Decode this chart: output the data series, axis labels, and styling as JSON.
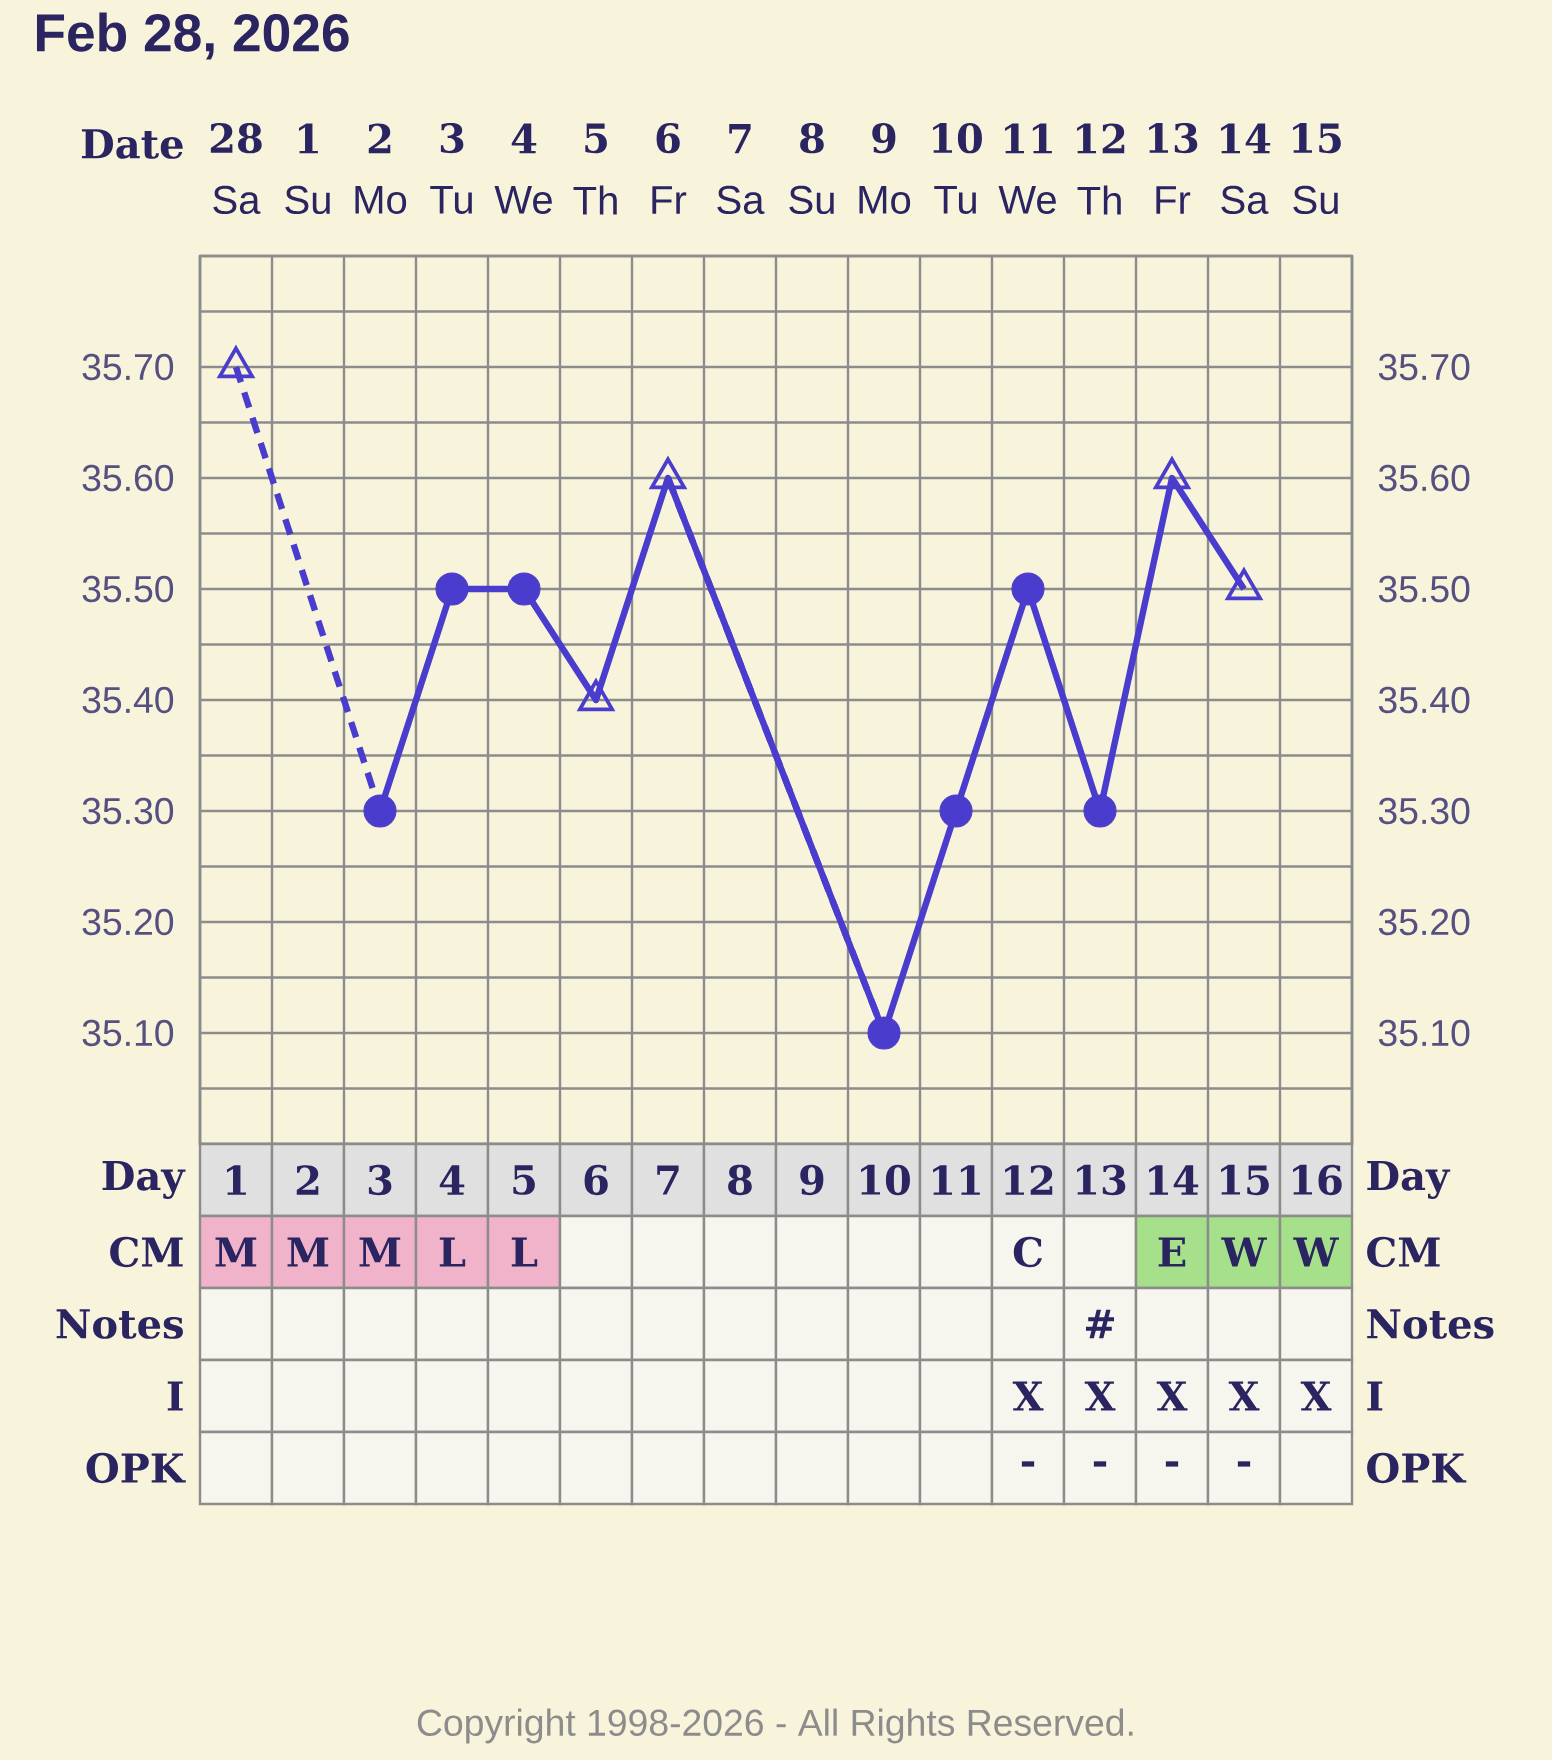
{
  "chart_data": [
    {
      "type": "line",
      "title": "Feb 28, 2026",
      "xlabel": "Date",
      "categories": [
        "28",
        "1",
        "2",
        "3",
        "4",
        "5",
        "6",
        "7",
        "8",
        "9",
        "10",
        "11",
        "12",
        "13",
        "14",
        "15"
      ],
      "ylim": [
        35.0,
        35.8
      ],
      "y2lim": [
        35.0,
        35.8
      ],
      "yticks": [
        {
          "value": 35.0,
          "label": null
        },
        {
          "value": 35.05,
          "label": null
        },
        {
          "value": 35.1,
          "label": "35.10"
        },
        {
          "value": 35.15,
          "label": null
        },
        {
          "value": 35.2,
          "label": "35.20"
        },
        {
          "value": 35.25,
          "label": null
        },
        {
          "value": 35.3,
          "label": "35.30"
        },
        {
          "value": 35.35,
          "label": null
        },
        {
          "value": 35.4,
          "label": "35.40"
        },
        {
          "value": 35.45,
          "label": null
        },
        {
          "value": 35.5,
          "label": "35.50"
        },
        {
          "value": 35.55,
          "label": null
        },
        {
          "value": 35.6,
          "label": "35.60"
        },
        {
          "value": 35.65,
          "label": null
        },
        {
          "value": 35.7,
          "label": "35.70"
        },
        {
          "value": 35.75,
          "label": null
        },
        {
          "value": 35.8,
          "label": null
        }
      ],
      "y2ticks": [
        {
          "value": 35.1,
          "label": "35.10"
        },
        {
          "value": 35.2,
          "label": "35.20"
        },
        {
          "value": 35.3,
          "label": "35.30"
        },
        {
          "value": 35.4,
          "label": "35.40"
        },
        {
          "value": 35.5,
          "label": "35.50"
        },
        {
          "value": 35.6,
          "label": "35.60"
        },
        {
          "value": 35.7,
          "label": "35.70"
        }
      ],
      "grid": true,
      "series": [
        {
          "type": "line",
          "line_style": "solid",
          "marker": "none",
          "color": "#4a3ccc",
          "values": [
            null,
            null,
            35.3,
            35.5,
            35.5,
            35.4,
            35.6,
            null,
            null,
            35.1,
            35.3,
            35.5,
            35.3,
            35.6,
            35.5,
            null
          ]
        },
        {
          "type": "line",
          "line_style": "dashed",
          "marker": "none",
          "color": "#4a3ccc",
          "values": [
            35.7,
            null,
            35.3,
            null,
            null,
            null,
            null,
            null,
            null,
            null,
            null,
            null,
            null,
            null,
            null,
            null
          ]
        },
        {
          "type": "line",
          "line_style": "dashed",
          "marker": "none",
          "color": "#4a3ccc",
          "values": [
            null,
            null,
            null,
            null,
            null,
            null,
            35.6,
            null,
            null,
            35.1,
            null,
            null,
            null,
            null,
            null,
            null
          ]
        },
        {
          "type": "scatter",
          "marker": "circle",
          "color": "#4a3ccc",
          "values": [
            null,
            null,
            35.3,
            35.5,
            35.5,
            null,
            null,
            null,
            null,
            35.1,
            35.3,
            35.5,
            35.3,
            null,
            null,
            null
          ]
        },
        {
          "type": "scatter",
          "marker": "triangle",
          "color": "#4a3ccc",
          "values": [
            35.7,
            null,
            null,
            null,
            null,
            35.4,
            35.6,
            null,
            null,
            null,
            null,
            null,
            null,
            35.6,
            35.5,
            null
          ]
        }
      ],
      "annotations": [
        "Copyright 1998-2026 - All Rights Reserved."
      ]
    },
    {
      "type": "heatmap",
      "xlabel": "Day",
      "categories": [
        "1",
        "2",
        "3",
        "4",
        "5",
        "6",
        "7",
        "8",
        "9",
        "10",
        "11",
        "12",
        "13",
        "14",
        "15",
        "16"
      ],
      "y_categories": [
        "CM",
        "Notes",
        "I",
        "OPK"
      ],
      "y2_categories": [
        "CM",
        "Notes",
        "I",
        "OPK"
      ],
      "cells": [
        [
          null,
          null,
          null,
          null,
          null,
          null,
          null,
          null,
          null,
          null,
          null,
          null,
          null,
          null,
          null,
          null
        ],
        [
          null,
          null,
          null,
          null,
          null,
          null,
          null,
          null,
          null,
          null,
          null,
          null,
          null,
          null,
          null,
          null
        ],
        [
          null,
          null,
          null,
          null,
          null,
          null,
          null,
          null,
          null,
          null,
          null,
          null,
          null,
          null,
          null,
          null
        ],
        [
          null,
          null,
          null,
          null,
          null,
          null,
          null,
          null,
          null,
          null,
          null,
          null,
          null,
          null,
          null,
          null
        ]
      ],
      "cell_labels": [
        [
          "M",
          "M",
          "M",
          "L",
          "L",
          null,
          null,
          null,
          null,
          null,
          null,
          "C",
          null,
          "E",
          "W",
          "W"
        ],
        [
          null,
          null,
          null,
          null,
          null,
          null,
          null,
          null,
          null,
          null,
          null,
          null,
          "#",
          null,
          null,
          null
        ],
        [
          null,
          null,
          null,
          null,
          null,
          null,
          null,
          null,
          null,
          null,
          null,
          "X",
          "X",
          "X",
          "X",
          "X"
        ],
        [
          null,
          null,
          null,
          null,
          null,
          null,
          null,
          null,
          null,
          null,
          null,
          "-",
          "-",
          "-",
          "-",
          null
        ]
      ],
      "colors": [
        [
          "#f0b3c9",
          "#f0b3c9",
          "#f0b3c9",
          "#f0b3c9",
          "#f0b3c9",
          null,
          null,
          null,
          null,
          null,
          null,
          null,
          null,
          "#a6e08a",
          "#a6e08a",
          "#a6e08a"
        ],
        [
          null,
          null,
          null,
          null,
          null,
          null,
          null,
          null,
          null,
          null,
          null,
          null,
          null,
          null,
          null,
          null
        ],
        [
          null,
          null,
          null,
          null,
          null,
          null,
          null,
          null,
          null,
          null,
          null,
          null,
          null,
          null,
          null,
          null
        ],
        [
          null,
          null,
          null,
          null,
          null,
          null,
          null,
          null,
          null,
          null,
          null,
          null,
          null,
          null,
          null,
          null
        ]
      ]
    },
    {
      "type": "other",
      "annotations": [
        "Sa",
        "Su",
        "Mo",
        "Tu",
        "We",
        "Th",
        "Fr",
        "Sa",
        "Su",
        "Mo",
        "Tu",
        "We",
        "Th",
        "Fr",
        "Sa",
        "Su"
      ]
    }
  ]
}
